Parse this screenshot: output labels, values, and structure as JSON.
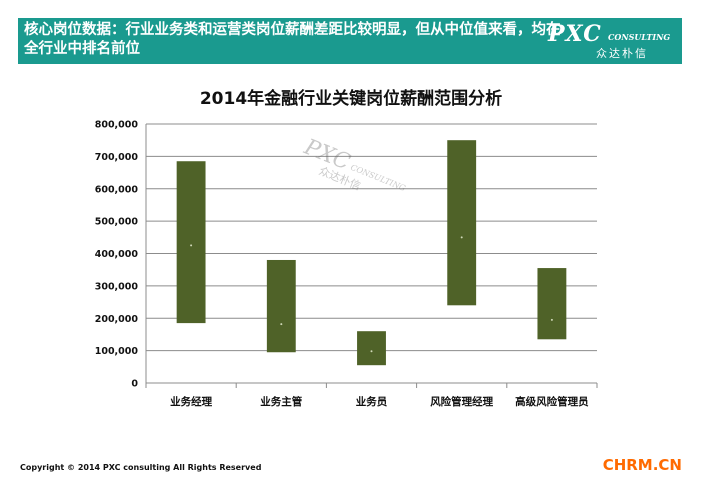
{
  "banner": {
    "text": "核心岗位数据：行业业务类和运营类岗位薪酬差距比较明显，但从中位值来看，均在全行业中排名前位",
    "logo_main": "PXC",
    "logo_sub": "CONSULTING",
    "logo_cn": "众达朴信"
  },
  "watermark": {
    "main": "PXC",
    "sub": "CONSULTING",
    "cn": "众达朴信"
  },
  "footer": {
    "copyright": "Copyright © 2014 PXC consulting All Rights Reserved",
    "site": "CHRM.CN"
  },
  "colors": {
    "banner": "#1a9a8f",
    "bar": "#4f6228",
    "site": "#ff6a00"
  },
  "chart_data": {
    "type": "bar",
    "subtype": "floating-range",
    "title": "2014年金融行业关键岗位薪酬范围分析",
    "xlabel": "",
    "ylabel": "",
    "ylim": [
      0,
      800000
    ],
    "yticks": [
      0,
      100000,
      200000,
      300000,
      400000,
      500000,
      600000,
      700000,
      800000
    ],
    "ytick_labels": [
      "0",
      "100,000",
      "200,000",
      "300,000",
      "400,000",
      "500,000",
      "600,000",
      "700,000",
      "800,000"
    ],
    "grid": true,
    "categories": [
      "业务经理",
      "业务主管",
      "业务员",
      "风险管理经理",
      "高级风险管理员"
    ],
    "low": [
      185000,
      95000,
      55000,
      240000,
      135000
    ],
    "high": [
      685000,
      380000,
      160000,
      750000,
      355000
    ],
    "median": [
      425000,
      182000,
      98000,
      450000,
      195000
    ]
  }
}
